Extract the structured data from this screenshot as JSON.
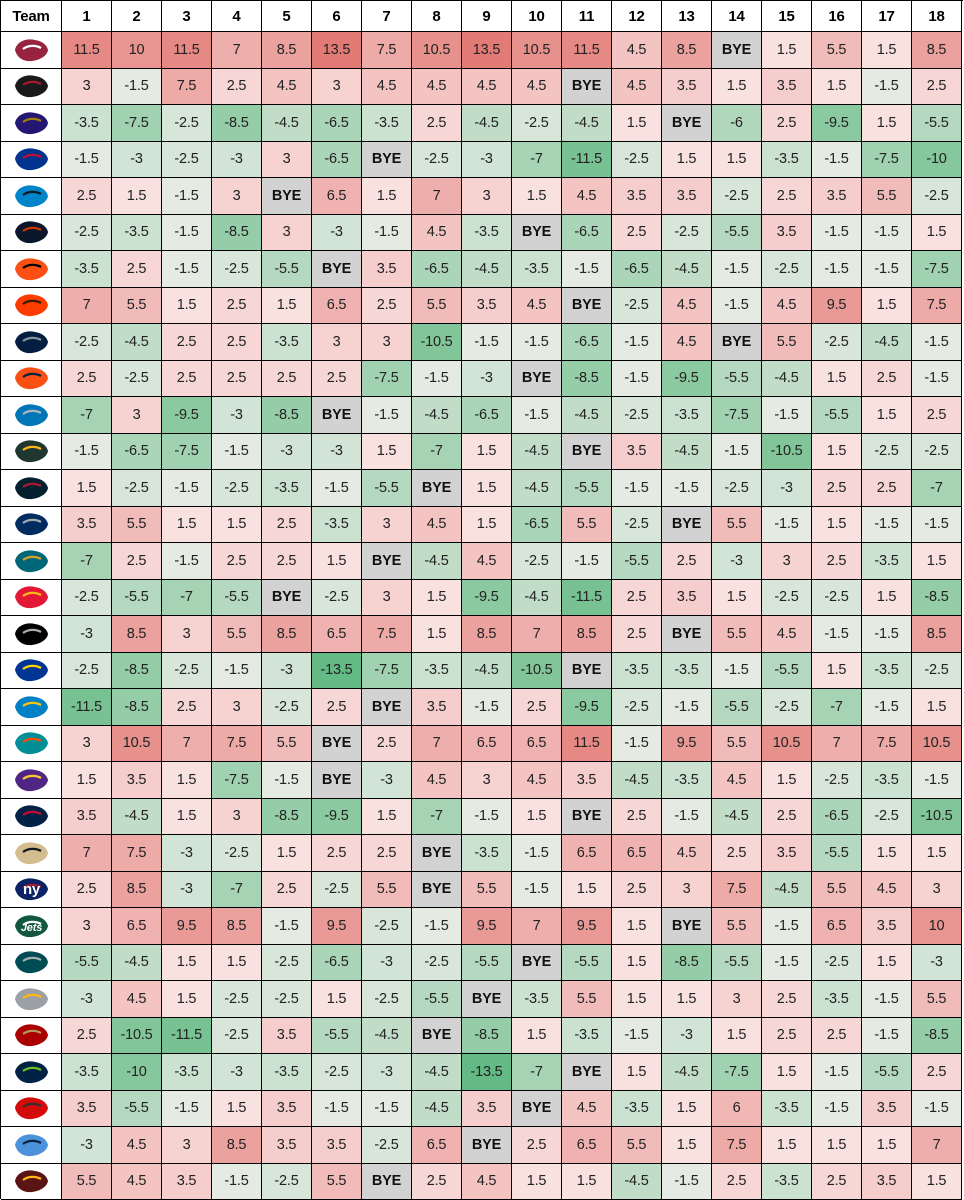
{
  "chart_data": {
    "type": "table",
    "title": "",
    "columns": [
      "Team",
      "1",
      "2",
      "3",
      "4",
      "5",
      "6",
      "7",
      "8",
      "9",
      "10",
      "11",
      "12",
      "13",
      "14",
      "15",
      "16",
      "17",
      "18"
    ],
    "bye_label": "BYE",
    "color_scale": {
      "negative": "#56b57a",
      "neutral": "#fdf4f4",
      "positive": "#e06f6a",
      "bye": "#d2d2d2",
      "max_abs": 13.5
    },
    "rows": [
      {
        "team": "Arizona Cardinals",
        "logo_icon": "cardinals-logo-icon",
        "color": "#97233f",
        "accent": "#ffffff",
        "abbr": "",
        "values": [
          11.5,
          10,
          11.5,
          7,
          8.5,
          13.5,
          7.5,
          10.5,
          13.5,
          10.5,
          11.5,
          4.5,
          8.5,
          "BYE",
          1.5,
          5.5,
          1.5,
          8.5
        ]
      },
      {
        "team": "Atlanta Falcons",
        "logo_icon": "falcons-logo-icon",
        "color": "#1a1a1a",
        "accent": "#a71930",
        "abbr": "",
        "values": [
          3,
          -1.5,
          7.5,
          2.5,
          4.5,
          3,
          4.5,
          4.5,
          4.5,
          4.5,
          "BYE",
          4.5,
          3.5,
          1.5,
          3.5,
          1.5,
          -1.5,
          2.5
        ]
      },
      {
        "team": "Baltimore Ravens",
        "logo_icon": "ravens-logo-icon",
        "color": "#241773",
        "accent": "#9e7c0c",
        "abbr": "",
        "values": [
          -3.5,
          -7.5,
          -2.5,
          -8.5,
          -4.5,
          -6.5,
          -3.5,
          2.5,
          -4.5,
          -2.5,
          -4.5,
          1.5,
          "BYE",
          -6,
          2.5,
          -9.5,
          1.5,
          -5.5
        ]
      },
      {
        "team": "Buffalo Bills",
        "logo_icon": "bills-logo-icon",
        "color": "#00338d",
        "accent": "#c60c30",
        "abbr": "",
        "values": [
          -1.5,
          -3,
          -2.5,
          -3,
          3,
          -6.5,
          "BYE",
          -2.5,
          -3,
          -7,
          -11.5,
          -2.5,
          1.5,
          1.5,
          -3.5,
          -1.5,
          -7.5,
          -10
        ]
      },
      {
        "team": "Carolina Panthers",
        "logo_icon": "panthers-logo-icon",
        "color": "#0085ca",
        "accent": "#101820",
        "abbr": "",
        "values": [
          2.5,
          1.5,
          -1.5,
          3,
          "BYE",
          6.5,
          1.5,
          7,
          3,
          1.5,
          4.5,
          3.5,
          3.5,
          -2.5,
          2.5,
          3.5,
          5.5,
          -2.5
        ]
      },
      {
        "team": "Chicago Bears",
        "logo_icon": "bears-logo-icon",
        "color": "#0b162a",
        "accent": "#c83803",
        "abbr": "",
        "values": [
          -2.5,
          -3.5,
          -1.5,
          -8.5,
          3,
          -3,
          -1.5,
          4.5,
          -3.5,
          "BYE",
          -6.5,
          2.5,
          -2.5,
          -5.5,
          3.5,
          -1.5,
          -1.5,
          1.5
        ]
      },
      {
        "team": "Cincinnati Bengals",
        "logo_icon": "bengals-logo-icon",
        "color": "#fb4f14",
        "accent": "#000000",
        "abbr": "",
        "values": [
          -3.5,
          2.5,
          -1.5,
          -2.5,
          -5.5,
          "BYE",
          3.5,
          -6.5,
          -4.5,
          -3.5,
          -1.5,
          -6.5,
          -4.5,
          -1.5,
          -2.5,
          -1.5,
          -1.5,
          -7.5
        ]
      },
      {
        "team": "Cleveland Browns",
        "logo_icon": "browns-logo-icon",
        "color": "#ff3c00",
        "accent": "#311d00",
        "abbr": "",
        "values": [
          7,
          5.5,
          1.5,
          2.5,
          1.5,
          6.5,
          2.5,
          5.5,
          3.5,
          4.5,
          "BYE",
          -2.5,
          4.5,
          -1.5,
          4.5,
          9.5,
          1.5,
          7.5
        ]
      },
      {
        "team": "Dallas Cowboys",
        "logo_icon": "cowboys-logo-icon",
        "color": "#041e42",
        "accent": "#869397",
        "abbr": "",
        "values": [
          -2.5,
          -4.5,
          2.5,
          2.5,
          -3.5,
          3,
          3,
          -10.5,
          -1.5,
          -1.5,
          -6.5,
          -1.5,
          4.5,
          "BYE",
          5.5,
          -2.5,
          -4.5,
          -1.5
        ]
      },
      {
        "team": "Denver Broncos",
        "logo_icon": "broncos-logo-icon",
        "color": "#fb4f14",
        "accent": "#002244",
        "abbr": "",
        "values": [
          2.5,
          -2.5,
          2.5,
          2.5,
          2.5,
          2.5,
          -7.5,
          -1.5,
          -3,
          "BYE",
          -8.5,
          -1.5,
          -9.5,
          -5.5,
          -4.5,
          1.5,
          2.5,
          -1.5
        ]
      },
      {
        "team": "Detroit Lions",
        "logo_icon": "lions-logo-icon",
        "color": "#0076b6",
        "accent": "#b0b7bc",
        "abbr": "",
        "values": [
          -7,
          3,
          -9.5,
          -3,
          -8.5,
          "BYE",
          -1.5,
          -4.5,
          -6.5,
          -1.5,
          -4.5,
          -2.5,
          -3.5,
          -7.5,
          -1.5,
          -5.5,
          1.5,
          2.5
        ]
      },
      {
        "team": "Green Bay Packers",
        "logo_icon": "packers-logo-icon",
        "color": "#203731",
        "accent": "#ffb612",
        "abbr": "",
        "values": [
          -1.5,
          -6.5,
          -7.5,
          -1.5,
          -3,
          -3,
          1.5,
          -7,
          1.5,
          -4.5,
          "BYE",
          3.5,
          -4.5,
          -1.5,
          -10.5,
          1.5,
          -2.5,
          -2.5
        ]
      },
      {
        "team": "Houston Texans",
        "logo_icon": "texans-logo-icon",
        "color": "#03202f",
        "accent": "#a71930",
        "abbr": "",
        "values": [
          1.5,
          -2.5,
          -1.5,
          -2.5,
          -3.5,
          -1.5,
          -5.5,
          "BYE",
          1.5,
          -4.5,
          -5.5,
          -1.5,
          -1.5,
          -2.5,
          -3,
          2.5,
          2.5,
          -7
        ]
      },
      {
        "team": "Indianapolis Colts",
        "logo_icon": "colts-logo-icon",
        "color": "#002c5f",
        "accent": "#a2aaad",
        "abbr": "",
        "values": [
          3.5,
          5.5,
          1.5,
          1.5,
          2.5,
          -3.5,
          3,
          4.5,
          1.5,
          -6.5,
          5.5,
          -2.5,
          "BYE",
          5.5,
          -1.5,
          1.5,
          -1.5,
          -1.5
        ]
      },
      {
        "team": "Jacksonville Jaguars",
        "logo_icon": "jaguars-logo-icon",
        "color": "#006778",
        "accent": "#d7a22a",
        "abbr": "",
        "values": [
          -7,
          2.5,
          -1.5,
          2.5,
          2.5,
          1.5,
          "BYE",
          -4.5,
          4.5,
          -2.5,
          -1.5,
          -5.5,
          2.5,
          -3,
          3,
          2.5,
          -3.5,
          1.5
        ]
      },
      {
        "team": "Kansas City Chiefs",
        "logo_icon": "chiefs-logo-icon",
        "color": "#e31837",
        "accent": "#ffb81c",
        "abbr": "",
        "values": [
          -2.5,
          -5.5,
          -7,
          -5.5,
          "BYE",
          -2.5,
          3,
          1.5,
          -9.5,
          -4.5,
          -11.5,
          2.5,
          3.5,
          1.5,
          -2.5,
          -2.5,
          1.5,
          -8.5
        ]
      },
      {
        "team": "Las Vegas Raiders",
        "logo_icon": "raiders-logo-icon",
        "color": "#000000",
        "accent": "#a5acaf",
        "abbr": "",
        "values": [
          -3,
          8.5,
          3,
          5.5,
          8.5,
          6.5,
          7.5,
          1.5,
          8.5,
          7,
          8.5,
          2.5,
          "BYE",
          5.5,
          4.5,
          -1.5,
          -1.5,
          8.5
        ]
      },
      {
        "team": "Los Angeles Rams",
        "logo_icon": "rams-logo-icon",
        "color": "#003594",
        "accent": "#ffd100",
        "abbr": "",
        "values": [
          -2.5,
          -8.5,
          -2.5,
          -1.5,
          -3,
          -13.5,
          -7.5,
          -3.5,
          -4.5,
          -10.5,
          "BYE",
          -3.5,
          -3.5,
          -1.5,
          -5.5,
          1.5,
          -3.5,
          -2.5
        ]
      },
      {
        "team": "Los Angeles Chargers",
        "logo_icon": "chargers-logo-icon",
        "color": "#0080c6",
        "accent": "#ffc20e",
        "abbr": "",
        "values": [
          -11.5,
          -8.5,
          2.5,
          3,
          -2.5,
          2.5,
          "BYE",
          3.5,
          -1.5,
          2.5,
          -9.5,
          -2.5,
          -1.5,
          -5.5,
          -2.5,
          -7,
          -1.5,
          1.5
        ]
      },
      {
        "team": "Miami Dolphins",
        "logo_icon": "dolphins-logo-icon",
        "color": "#008e97",
        "accent": "#fc4c02",
        "abbr": "",
        "values": [
          3,
          10.5,
          7,
          7.5,
          5.5,
          "BYE",
          2.5,
          7,
          6.5,
          6.5,
          11.5,
          -1.5,
          9.5,
          5.5,
          10.5,
          7,
          7.5,
          10.5
        ]
      },
      {
        "team": "Minnesota Vikings",
        "logo_icon": "vikings-logo-icon",
        "color": "#4f2683",
        "accent": "#ffc62f",
        "abbr": "",
        "values": [
          1.5,
          3.5,
          1.5,
          -7.5,
          -1.5,
          "BYE",
          -3,
          4.5,
          3,
          4.5,
          3.5,
          -4.5,
          -3.5,
          4.5,
          1.5,
          -2.5,
          -3.5,
          -1.5
        ]
      },
      {
        "team": "New England Patriots",
        "logo_icon": "patriots-logo-icon",
        "color": "#002244",
        "accent": "#c60c30",
        "abbr": "",
        "values": [
          3.5,
          -4.5,
          1.5,
          3,
          -8.5,
          -9.5,
          1.5,
          -7,
          -1.5,
          1.5,
          "BYE",
          2.5,
          -1.5,
          -4.5,
          2.5,
          -6.5,
          -2.5,
          -10.5
        ]
      },
      {
        "team": "New Orleans Saints",
        "logo_icon": "saints-logo-icon",
        "color": "#d3bc8d",
        "accent": "#101820",
        "abbr": "",
        "values": [
          7,
          7.5,
          -3,
          -2.5,
          1.5,
          2.5,
          2.5,
          "BYE",
          -3.5,
          -1.5,
          6.5,
          6.5,
          4.5,
          2.5,
          3.5,
          -5.5,
          1.5,
          1.5
        ]
      },
      {
        "team": "New York Giants",
        "logo_icon": "giants-logo-icon",
        "color": "#0b2265",
        "accent": "#a71930",
        "abbr": "ny",
        "values": [
          2.5,
          8.5,
          -3,
          -7,
          2.5,
          -2.5,
          5.5,
          "BYE",
          5.5,
          -1.5,
          1.5,
          2.5,
          3,
          7.5,
          -4.5,
          5.5,
          4.5,
          3
        ]
      },
      {
        "team": "New York Jets",
        "logo_icon": "jets-logo-icon",
        "color": "#125740",
        "accent": "#ffffff",
        "abbr": "Jets",
        "values": [
          3,
          6.5,
          9.5,
          8.5,
          -1.5,
          9.5,
          -2.5,
          -1.5,
          9.5,
          7,
          9.5,
          1.5,
          "BYE",
          5.5,
          -1.5,
          6.5,
          3.5,
          10
        ]
      },
      {
        "team": "Philadelphia Eagles",
        "logo_icon": "eagles-logo-icon",
        "color": "#004c54",
        "accent": "#a5acaf",
        "abbr": "",
        "values": [
          -5.5,
          -4.5,
          1.5,
          1.5,
          -2.5,
          -6.5,
          -3,
          -2.5,
          -5.5,
          "BYE",
          -5.5,
          1.5,
          -8.5,
          -5.5,
          -1.5,
          -2.5,
          1.5,
          -3
        ]
      },
      {
        "team": "Pittsburgh Steelers",
        "logo_icon": "steelers-logo-icon",
        "color": "#9aa0a6",
        "accent": "#ffb612",
        "abbr": "",
        "values": [
          -3,
          4.5,
          1.5,
          -2.5,
          -2.5,
          1.5,
          -2.5,
          -5.5,
          "BYE",
          -3.5,
          5.5,
          1.5,
          1.5,
          3,
          2.5,
          -3.5,
          -1.5,
          5.5
        ]
      },
      {
        "team": "San Francisco 49ers",
        "logo_icon": "49ers-logo-icon",
        "color": "#aa0000",
        "accent": "#b3995d",
        "abbr": "",
        "values": [
          2.5,
          -10.5,
          -11.5,
          -2.5,
          3.5,
          -5.5,
          -4.5,
          "BYE",
          -8.5,
          1.5,
          -3.5,
          -1.5,
          -3,
          1.5,
          2.5,
          2.5,
          -1.5,
          -8.5
        ]
      },
      {
        "team": "Seattle Seahawks",
        "logo_icon": "seahawks-logo-icon",
        "color": "#002244",
        "accent": "#69be28",
        "abbr": "",
        "values": [
          -3.5,
          -10,
          -3.5,
          -3,
          -3.5,
          -2.5,
          -3,
          -4.5,
          -13.5,
          -7,
          "BYE",
          1.5,
          -4.5,
          -7.5,
          1.5,
          -1.5,
          -5.5,
          2.5
        ]
      },
      {
        "team": "Tampa Bay Buccaneers",
        "logo_icon": "buccaneers-logo-icon",
        "color": "#d50a0a",
        "accent": "#34302b",
        "abbr": "",
        "values": [
          3.5,
          -5.5,
          -1.5,
          1.5,
          3.5,
          -1.5,
          -1.5,
          -4.5,
          3.5,
          "BYE",
          4.5,
          -3.5,
          1.5,
          6,
          -3.5,
          -1.5,
          3.5,
          -1.5
        ]
      },
      {
        "team": "Tennessee Titans",
        "logo_icon": "titans-logo-icon",
        "color": "#4b92db",
        "accent": "#0c2340",
        "abbr": "",
        "values": [
          -3,
          4.5,
          3,
          8.5,
          3.5,
          3.5,
          -2.5,
          6.5,
          "BYE",
          2.5,
          6.5,
          5.5,
          1.5,
          7.5,
          1.5,
          1.5,
          1.5,
          7
        ]
      },
      {
        "team": "Washington Commanders",
        "logo_icon": "commanders-logo-icon",
        "color": "#5a1414",
        "accent": "#ffb612",
        "abbr": "",
        "values": [
          5.5,
          4.5,
          3.5,
          -1.5,
          -2.5,
          5.5,
          "BYE",
          2.5,
          4.5,
          1.5,
          1.5,
          -4.5,
          -1.5,
          2.5,
          -3.5,
          2.5,
          3.5,
          1.5
        ]
      }
    ]
  }
}
